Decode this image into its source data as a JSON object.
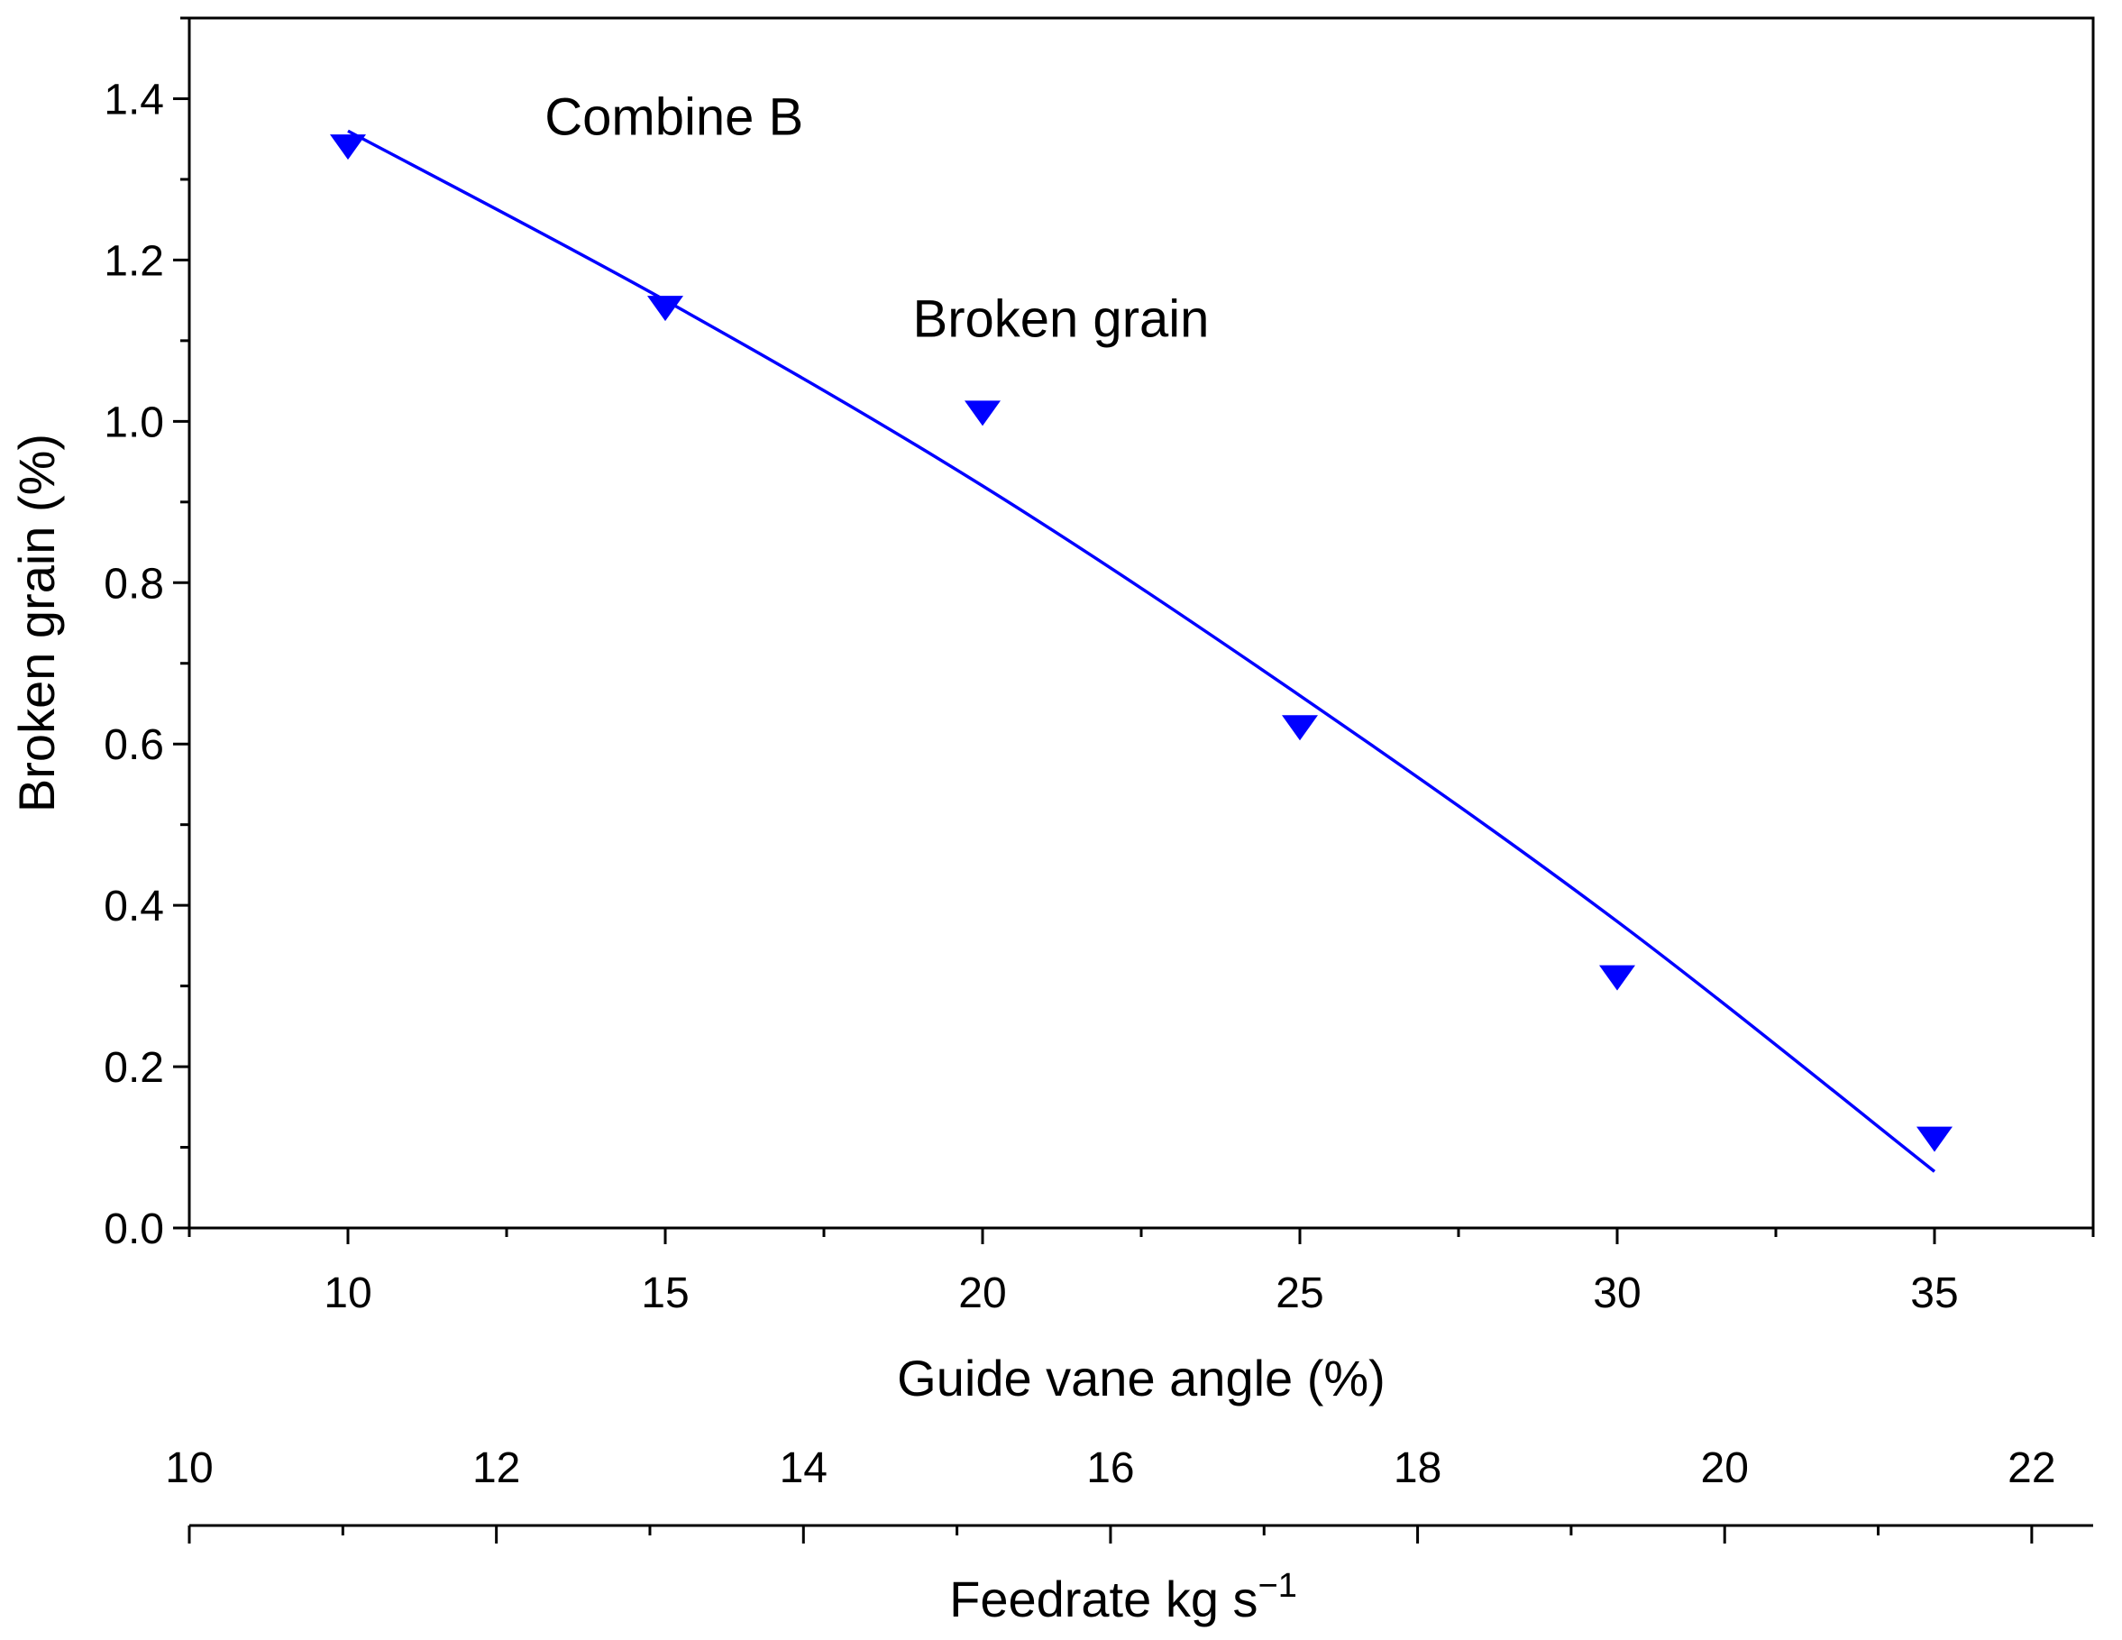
{
  "chart_data": {
    "type": "scatter",
    "title": "",
    "xlabel": "Guide vane angle (%)",
    "ylabel": "Broken grain (%)",
    "xlim": [
      7.5,
      37.5
    ],
    "ylim": [
      0.0,
      1.5
    ],
    "x_ticks": [
      10,
      15,
      20,
      25,
      30,
      35
    ],
    "x_tick_labels": [
      "10",
      "15",
      "20",
      "25",
      "30",
      "35"
    ],
    "y_ticks": [
      0.0,
      0.2,
      0.4,
      0.6,
      0.8,
      1.0,
      1.2,
      1.4
    ],
    "y_tick_labels": [
      "0.0",
      "0.2",
      "0.4",
      "0.6",
      "0.8",
      "1.0",
      "1.2",
      "1.4"
    ],
    "secondary_x_axis": {
      "label": "Feedrate kg s",
      "label_superscript": "−1",
      "lim": [
        10,
        22.4
      ],
      "ticks": [
        10,
        12,
        14,
        16,
        18,
        20,
        22
      ],
      "tick_labels": [
        "10",
        "12",
        "14",
        "16",
        "18",
        "20",
        "22"
      ]
    },
    "series": [
      {
        "x": [
          10,
          15,
          20,
          25,
          30,
          35
        ],
        "y": [
          1.34,
          1.14,
          1.01,
          0.62,
          0.31,
          0.11
        ],
        "marker": "triangle-down",
        "color": "#0000ff"
      }
    ],
    "fit_line": {
      "x": [
        10,
        15,
        20,
        25,
        30,
        35
      ],
      "y": [
        1.36,
        1.15,
        0.92,
        0.66,
        0.38,
        0.07
      ],
      "color": "#0000ff"
    },
    "annotations": [
      {
        "text": "Combine B",
        "x": 13.1,
        "y": 1.355
      },
      {
        "text": "Broken grain",
        "x": 18.9,
        "y": 1.105
      }
    ],
    "grid": false,
    "legend": "none"
  }
}
